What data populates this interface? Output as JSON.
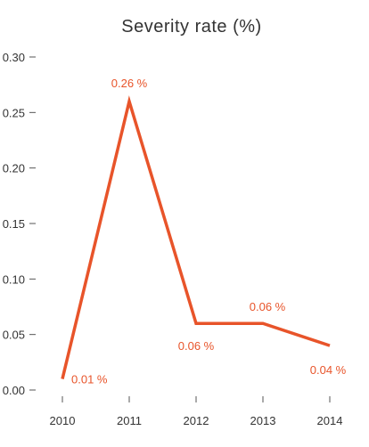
{
  "chart_data": {
    "type": "line",
    "title": "Severity rate (%)",
    "xlabel": "",
    "ylabel": "",
    "categories": [
      "2010",
      "2011",
      "2012",
      "2013",
      "2014"
    ],
    "values": [
      0.01,
      0.26,
      0.06,
      0.06,
      0.04
    ],
    "data_labels": [
      "0.01 %",
      "0.26 %",
      "0.06 %",
      "0.06 %",
      "0.04 %"
    ],
    "y_ticks": [
      "0.00",
      "0.05",
      "0.10",
      "0.15",
      "0.20",
      "0.25",
      "0.30"
    ],
    "y_tick_values": [
      0,
      0.05,
      0.1,
      0.15,
      0.2,
      0.25,
      0.3
    ],
    "ylim": [
      0,
      0.3
    ],
    "grid": false,
    "legend": "none",
    "colors": {
      "series": "#e8542a",
      "axis": "#555555",
      "text": "#333333"
    }
  }
}
